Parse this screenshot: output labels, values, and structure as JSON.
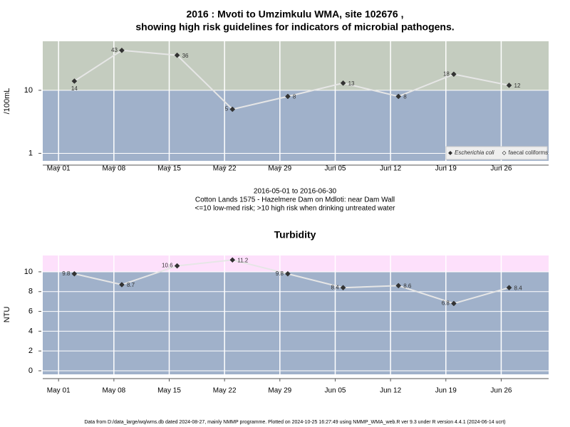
{
  "chart_data": [
    {
      "type": "line",
      "title": [
        "2016 : Mvoti to Umzimkulu WMA, site 102676 ,",
        "showing high risk guidelines for indicators of microbial pathogens."
      ],
      "annotations": [
        "2016-05-01 to 2016-06-30",
        "Cotton Lands 1575 - Hazelmere Dam on Mdloti: near Dam Wall",
        "<=10 low-med risk; >10 high risk when drinking untreated water"
      ],
      "y_label": "/100mL",
      "log_scale": true,
      "x": [
        "2016-05-03",
        "2016-05-09",
        "2016-05-16",
        "2016-05-23",
        "2016-05-30",
        "2016-06-06",
        "2016-06-13",
        "2016-06-20",
        "2016-06-27"
      ],
      "series": [
        {
          "name": "Escherichia coli",
          "color": "#333333",
          "values": [
            14,
            43,
            36,
            5,
            8,
            13,
            8,
            18,
            12
          ]
        },
        {
          "name": "faecal coliforms",
          "color": "#ffffff",
          "values": [
            null,
            null,
            null,
            null,
            null,
            null,
            null,
            null,
            null
          ]
        }
      ],
      "line_color": "#e6e6e6",
      "guideline": 10,
      "band_colors": {
        "above": "#c4ccbf",
        "below": "#a0b1ca"
      },
      "xlim": [
        "2016-04-29",
        "2016-07-02"
      ],
      "xticks": [
        {
          "value": "2016-05-01",
          "label": "May 01"
        },
        {
          "value": "2016-05-08",
          "label": "May 08"
        },
        {
          "value": "2016-05-15",
          "label": "May 15"
        },
        {
          "value": "2016-05-22",
          "label": "May 22"
        },
        {
          "value": "2016-05-29",
          "label": "May 29"
        },
        {
          "value": "2016-06-05",
          "label": "Jun 05"
        },
        {
          "value": "2016-06-12",
          "label": "Jun 12"
        },
        {
          "value": "2016-06-19",
          "label": "Jun 19"
        },
        {
          "value": "2016-06-26",
          "label": "Jun 26"
        }
      ],
      "ylim": [
        0.76,
        60
      ],
      "yticks": [
        1,
        10
      ],
      "grid": true,
      "legend": "bottom-right"
    },
    {
      "type": "line",
      "title": [
        "Turbidity"
      ],
      "y_label": "NTU",
      "log_scale": false,
      "x": [
        "2016-05-03",
        "2016-05-09",
        "2016-05-16",
        "2016-05-23",
        "2016-05-30",
        "2016-06-06",
        "2016-06-13",
        "2016-06-20",
        "2016-06-27"
      ],
      "series": [
        {
          "name": "Turbidity",
          "color": "#333333",
          "values": [
            9.8,
            8.7,
            10.6,
            11.2,
            9.8,
            8.4,
            8.6,
            6.8,
            8.4
          ]
        }
      ],
      "line_color": "#e6e6e6",
      "guideline": 10,
      "band_colors": {
        "above": "#fde0fb",
        "below": "#a0b1ca"
      },
      "xlim": [
        "2016-04-29",
        "2016-07-02"
      ],
      "xticks": [
        {
          "value": "2016-05-01",
          "label": "May 01"
        },
        {
          "value": "2016-05-08",
          "label": "May 08"
        },
        {
          "value": "2016-05-15",
          "label": "May 15"
        },
        {
          "value": "2016-05-22",
          "label": "May 22"
        },
        {
          "value": "2016-05-29",
          "label": "May 29"
        },
        {
          "value": "2016-06-05",
          "label": "Jun 05"
        },
        {
          "value": "2016-06-12",
          "label": "Jun 12"
        },
        {
          "value": "2016-06-19",
          "label": "Jun 19"
        },
        {
          "value": "2016-06-26",
          "label": "Jun 26"
        }
      ],
      "ylim": [
        -0.36,
        11.65
      ],
      "yticks": [
        0,
        2,
        4,
        6,
        8,
        10
      ],
      "grid": true
    }
  ],
  "footer": "Data from D:/data_large/wq/wms.db dated 2024-08-27, mainly NMMP programme. Plotted on 2024-10-25 16:27:49 using NMMP_WMA_web.R ver 9.3 under R version 4.4.1 (2024-06-14 ucrt)"
}
